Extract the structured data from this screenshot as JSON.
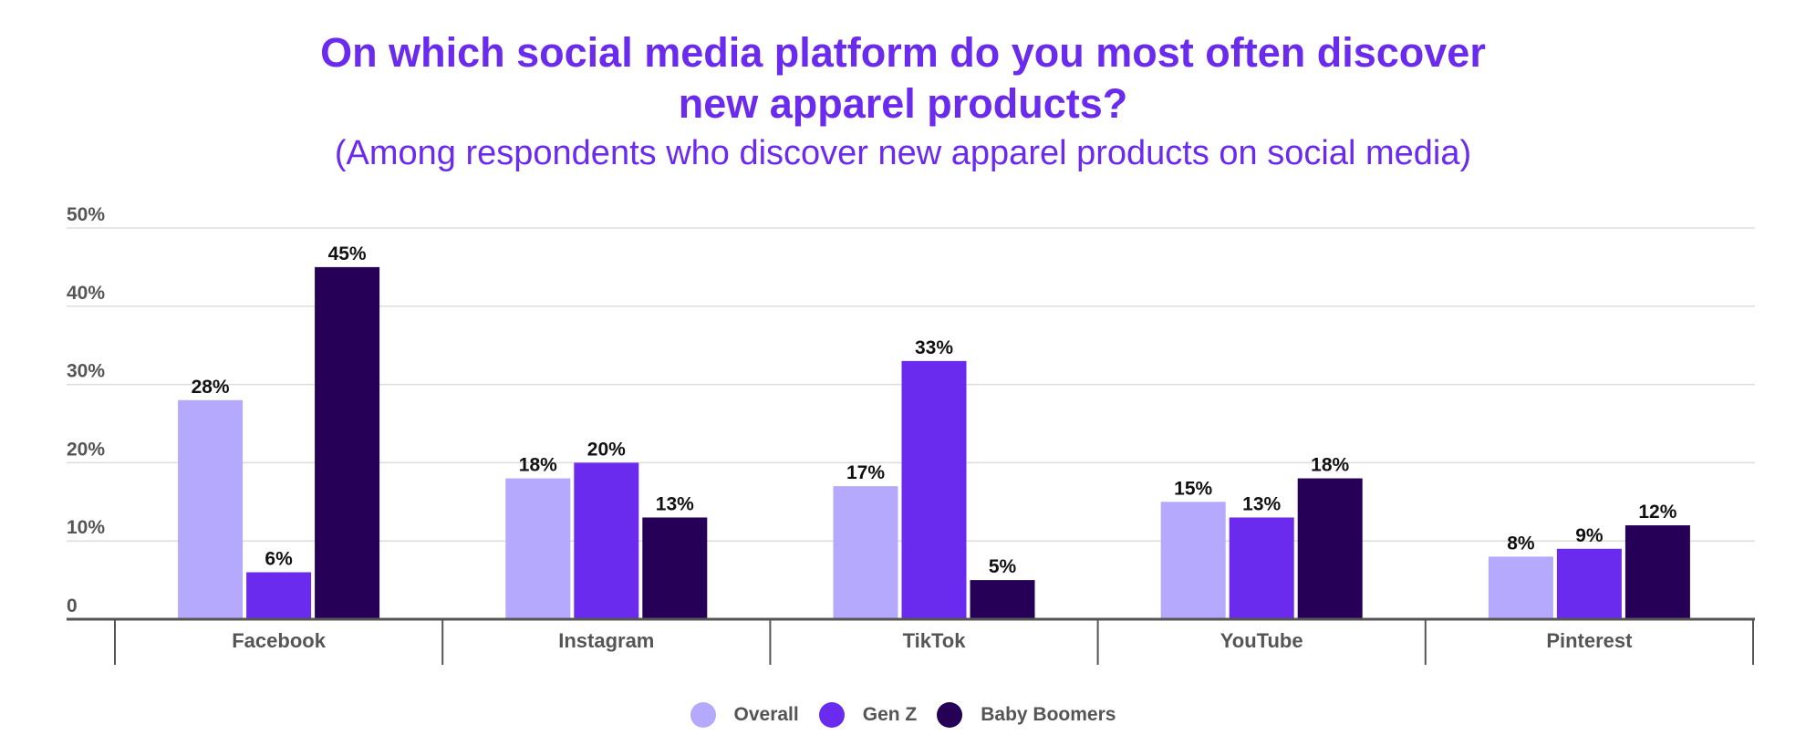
{
  "title_line1": "On which social media platform do you most often discover",
  "title_line2": "new apparel products?",
  "subtitle": "(Among respondents who discover new apparel products on social media)",
  "colors": {
    "title": "#6b2bef",
    "overall": "#b5a9fd",
    "genz": "#6b2bef",
    "boomers": "#250056",
    "axis": "#555555",
    "grid": "#dddddd",
    "label": "#111111"
  },
  "chart_data": {
    "type": "bar",
    "title": "On which social media platform do you most often discover new apparel products?",
    "subtitle": "(Among respondents who discover new apparel products on social media)",
    "categories": [
      "Facebook",
      "Instagram",
      "TikTok",
      "YouTube",
      "Pinterest"
    ],
    "series": [
      {
        "name": "Overall",
        "values": [
          28,
          18,
          17,
          15,
          8
        ],
        "color": "#b5a9fd"
      },
      {
        "name": "Gen Z",
        "values": [
          6,
          20,
          33,
          13,
          9
        ],
        "color": "#6b2bef"
      },
      {
        "name": "Baby Boomers",
        "values": [
          45,
          13,
          5,
          18,
          12
        ],
        "color": "#250056"
      }
    ],
    "ylim": [
      0,
      50
    ],
    "yticks": [
      0,
      10,
      20,
      30,
      40,
      50
    ],
    "ytick_labels": [
      "0",
      "10%",
      "20%",
      "30%",
      "40%",
      "50%"
    ],
    "value_suffix": "%",
    "grid": true,
    "legend_position": "bottom-center",
    "xlabel": "",
    "ylabel": ""
  }
}
